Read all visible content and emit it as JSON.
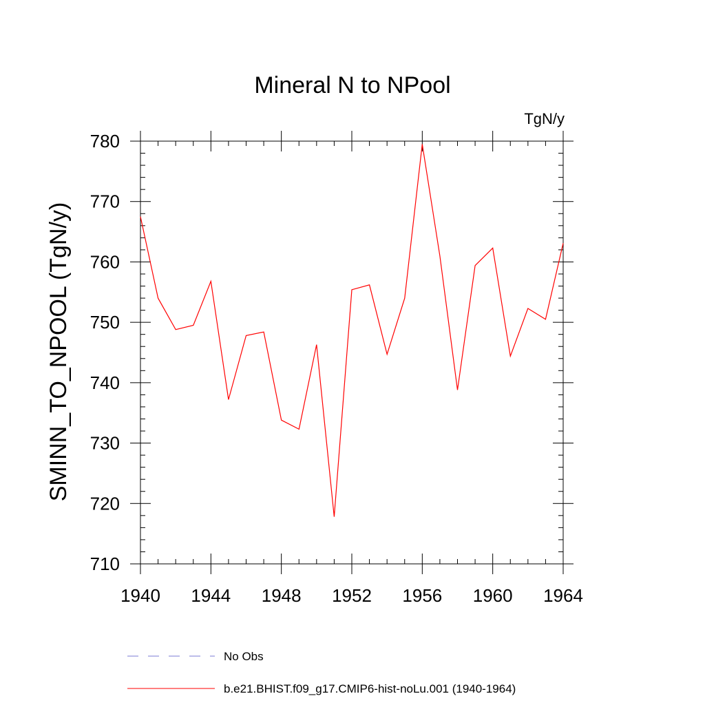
{
  "chart_data": {
    "type": "line",
    "title": "Mineral N to NPool",
    "units_label": "TgN/y",
    "ylabel": "SMINN_TO_NPOOL  (TgN/y)",
    "xlabel": "",
    "xlim": [
      1940,
      1964
    ],
    "ylim": [
      710,
      780
    ],
    "x_ticks": [
      "1940",
      "1944",
      "1948",
      "1952",
      "1956",
      "1960",
      "1964"
    ],
    "y_ticks": [
      "710",
      "720",
      "730",
      "740",
      "750",
      "760",
      "770",
      "780"
    ],
    "grid": false,
    "legend_position": "bottom",
    "series": [
      {
        "name": "b.e21.BHIST.f09_g17.CMIP6-hist-noLu.001 (1940-1964)",
        "color": "#ff0000",
        "style": "solid",
        "x": [
          1940,
          1941,
          1942,
          1943,
          1944,
          1945,
          1946,
          1947,
          1948,
          1949,
          1950,
          1951,
          1952,
          1953,
          1954,
          1955,
          1956,
          1957,
          1958,
          1959,
          1960,
          1961,
          1962,
          1963,
          1964
        ],
        "values": [
          767.5,
          754.0,
          748.8,
          749.5,
          756.8,
          737.2,
          747.8,
          748.4,
          733.8,
          732.3,
          746.3,
          717.8,
          755.4,
          756.2,
          744.7,
          754.0,
          779.5,
          761.0,
          738.8,
          759.4,
          762.3,
          744.4,
          752.3,
          750.5,
          763.1
        ]
      }
    ],
    "legend": [
      {
        "label": "No Obs",
        "color": "#7b7bd6",
        "style": "dashed"
      },
      {
        "label": "b.e21.BHIST.f09_g17.CMIP6-hist-noLu.001 (1940-1964)",
        "color": "#ff0000",
        "style": "solid"
      }
    ]
  }
}
